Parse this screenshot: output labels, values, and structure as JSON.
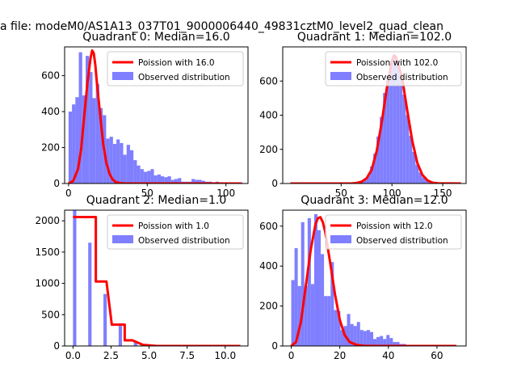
{
  "figure": {
    "suptitle": "a file: modeM0/AS1A13_037T01_9000006440_49831cztM0_level2_quad_clean"
  },
  "colors": {
    "hist_fill": "#7f7fff",
    "poisson_line": "#ff0000",
    "axis": "#000000"
  },
  "chart_data": [
    {
      "type": "bar",
      "title": "Quadrant 0: Median=16.0",
      "xlim": [
        -2.5,
        114
      ],
      "ylim": [
        0,
        760
      ],
      "xticks": [
        0,
        50,
        100
      ],
      "yticks": [
        0,
        200,
        400,
        600
      ],
      "legend": [
        "Poission with 16.0",
        "Observed distribution"
      ],
      "legend_loc": "upper right",
      "bin_width": 2.17,
      "hist_x": [
        0,
        2.17,
        4.34,
        6.51,
        8.68,
        10.85,
        13.02,
        15.19,
        17.36,
        19.53,
        21.7,
        23.87,
        26.04,
        28.21,
        30.38,
        32.55,
        34.72,
        36.89,
        39.06,
        41.23,
        43.4,
        45.57,
        47.74,
        49.91,
        52.08,
        54.25,
        56.42,
        58.59,
        60.76,
        62.93,
        65.1,
        67.27,
        69.44,
        71.61,
        73.78,
        75.95,
        78.12,
        80.29,
        82.46,
        84.63,
        86.8,
        88.97,
        91.14,
        93.31,
        95.48,
        97.65,
        99.82,
        101.99,
        104.16,
        106.33,
        108.5
      ],
      "hist_y": [
        400,
        440,
        480,
        730,
        490,
        710,
        620,
        475,
        555,
        420,
        380,
        250,
        260,
        220,
        245,
        225,
        160,
        215,
        185,
        130,
        100,
        80,
        65,
        70,
        80,
        45,
        50,
        40,
        35,
        40,
        20,
        25,
        30,
        10,
        10,
        10,
        25,
        20,
        20,
        15,
        10,
        10,
        5,
        10,
        5,
        5,
        5,
        5,
        5,
        5,
        5
      ],
      "line_x": [
        0,
        3,
        6,
        8,
        10,
        12,
        14,
        15,
        16,
        17,
        18,
        20,
        22,
        24,
        26,
        28,
        30,
        33,
        36,
        40,
        110
      ],
      "line_y": [
        0,
        15,
        80,
        190,
        380,
        560,
        700,
        740,
        725,
        660,
        560,
        390,
        220,
        115,
        55,
        22,
        8,
        2,
        0,
        0,
        0
      ]
    },
    {
      "type": "bar",
      "title": "Quadrant 1: Median=102.0",
      "xlim": [
        -7.5,
        173
      ],
      "ylim": [
        0,
        800
      ],
      "xticks": [
        50,
        100,
        150
      ],
      "yticks": [
        0,
        200,
        400,
        600
      ],
      "legend": [
        "Poission with 102.0",
        "Observed distribution"
      ],
      "legend_loc": "upper right",
      "bin_width": 3.2,
      "hist_x": [
        62.4,
        65.6,
        68.8,
        72,
        75.2,
        78.4,
        81.6,
        84.8,
        88,
        91.2,
        94.4,
        97.6,
        100.8,
        104,
        107.2,
        110.4,
        113.6,
        116.8,
        120,
        123.2,
        126.4,
        129.6,
        132.8,
        136,
        139.2,
        142.4
      ],
      "hist_y": [
        5,
        10,
        15,
        20,
        45,
        100,
        175,
        275,
        390,
        530,
        630,
        700,
        740,
        720,
        640,
        520,
        400,
        280,
        185,
        110,
        65,
        35,
        18,
        10,
        5,
        3
      ],
      "line_x": [
        0,
        60,
        65,
        70,
        75,
        80,
        85,
        90,
        95,
        100,
        102,
        104,
        110,
        115,
        120,
        125,
        130,
        135,
        140,
        145,
        168
      ],
      "line_y": [
        0,
        0,
        3,
        10,
        30,
        80,
        190,
        360,
        560,
        720,
        750,
        740,
        620,
        430,
        250,
        120,
        50,
        18,
        5,
        1,
        0
      ]
    },
    {
      "type": "bar",
      "title": "Quadrant 2: Median=1.0",
      "xlim": [
        -0.55,
        11.5
      ],
      "ylim": [
        0,
        2170
      ],
      "xticks": [
        0.0,
        2.5,
        5.0,
        7.5,
        10.0
      ],
      "yticks": [
        0,
        500,
        1000,
        1500,
        2000
      ],
      "xtick_labels": [
        "0.0",
        "2.5",
        "5.0",
        "7.5",
        "10.0"
      ],
      "legend": [
        "Poission with 1.0",
        "Observed distribution"
      ],
      "legend_loc": "upper right",
      "bin_width": 0.22,
      "hist_x": [
        0,
        1,
        2,
        3,
        4
      ],
      "hist_y": [
        2170,
        1650,
        830,
        320,
        80
      ],
      "line_x": [
        0,
        1.5,
        1.5,
        2.2,
        2.2,
        2.55,
        2.55,
        3.4,
        3.4,
        3.9,
        3.9,
        4.6,
        4.6,
        5.5,
        5.5,
        11
      ],
      "line_y": [
        2060,
        2060,
        1030,
        1030,
        1030,
        340,
        340,
        340,
        90,
        90,
        90,
        18,
        18,
        0,
        0,
        0
      ]
    },
    {
      "type": "bar",
      "title": "Quadrant 3: Median=12.0",
      "xlim": [
        -3.5,
        72
      ],
      "ylim": [
        0,
        680
      ],
      "xticks": [
        0,
        20,
        40,
        60
      ],
      "yticks": [
        0,
        200,
        400,
        600
      ],
      "legend": [
        "Poission with 12.0",
        "Observed distribution"
      ],
      "legend_loc": "upper right",
      "bin_width": 1.35,
      "hist_x": [
        0,
        1.35,
        2.7,
        4.05,
        5.4,
        6.75,
        8.1,
        9.45,
        10.8,
        12.15,
        13.5,
        14.85,
        16.2,
        17.55,
        18.9,
        20.25,
        21.6,
        22.95,
        24.3,
        25.65,
        27,
        28.35,
        29.7,
        31.05,
        32.4,
        33.75,
        35.1,
        36.45,
        37.8,
        39.15,
        40.5,
        41.85,
        43.2,
        44.55,
        45.9
      ],
      "hist_y": [
        330,
        490,
        300,
        620,
        300,
        640,
        310,
        660,
        580,
        460,
        250,
        250,
        420,
        180,
        175,
        80,
        100,
        160,
        110,
        100,
        120,
        80,
        75,
        80,
        70,
        35,
        45,
        50,
        35,
        55,
        40,
        20,
        20,
        10,
        10
      ],
      "line_x": [
        0,
        2,
        4,
        6,
        8,
        10,
        11,
        12,
        13,
        14,
        16,
        18,
        20,
        22,
        24,
        27,
        30,
        35,
        68
      ],
      "line_y": [
        0,
        20,
        120,
        300,
        480,
        610,
        640,
        645,
        620,
        570,
        420,
        260,
        130,
        55,
        20,
        5,
        1,
        0,
        0
      ]
    }
  ]
}
